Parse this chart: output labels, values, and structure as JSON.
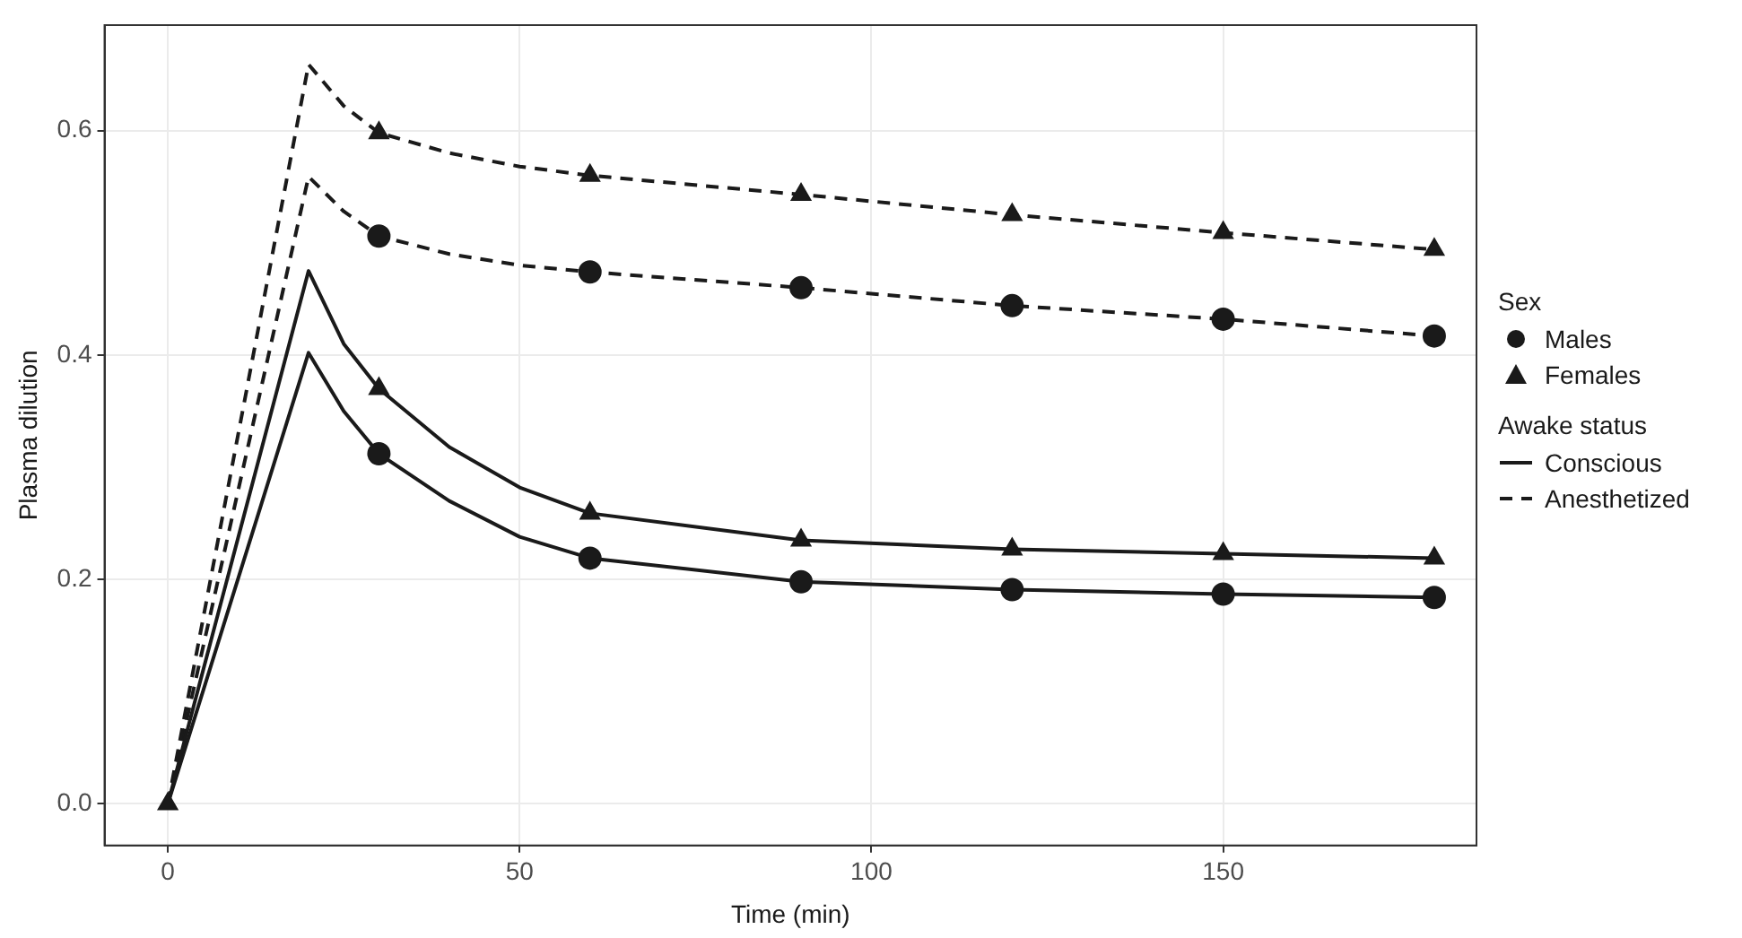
{
  "chart_data": {
    "type": "line",
    "xlabel": "Time (min)",
    "ylabel": "Plasma dilution",
    "legend_title": "Sex",
    "annotations": [
      "Awake status"
    ],
    "xlim": [
      -9,
      186
    ],
    "xticks": [
      0,
      50,
      100,
      150
    ],
    "ylim": [
      -0.037,
      0.694
    ],
    "yticks": [
      {
        "value": 0,
        "label": "0.0"
      },
      {
        "value": 0.2,
        "label": "0.2"
      },
      {
        "value": 0.4,
        "label": "0.4"
      },
      {
        "value": 0.6,
        "label": "0.6"
      }
    ],
    "grid": true,
    "legend": "right",
    "series": [
      {
        "name": "Conscious",
        "color": "#1a1a1a",
        "marker": "none",
        "line_style": "solid",
        "x": [
          0,
          20,
          25,
          30,
          40,
          50,
          60,
          90,
          120,
          150,
          180
        ],
        "values": [
          0,
          0.475,
          0.41,
          0.37,
          0.318,
          0.282,
          0.259,
          0.235,
          0.227,
          0.223,
          0.219
        ]
      },
      {
        "color": "#1a1a1a",
        "marker": "none",
        "line_style": "solid",
        "x": [
          0,
          20,
          25,
          30,
          40,
          50,
          60,
          90,
          120,
          150,
          180
        ],
        "values": [
          0,
          0.402,
          0.35,
          0.312,
          0.27,
          0.238,
          0.219,
          0.198,
          0.191,
          0.187,
          0.184
        ]
      },
      {
        "name": "Anesthetized",
        "color": "#1a1a1a",
        "marker": "none",
        "line_style": "dashed",
        "x": [
          0,
          20,
          25,
          30,
          40,
          50,
          60,
          90,
          120,
          150,
          180
        ],
        "values": [
          0,
          0.659,
          0.622,
          0.598,
          0.58,
          0.568,
          0.56,
          0.543,
          0.525,
          0.509,
          0.494
        ]
      },
      {
        "color": "#1a1a1a",
        "marker": "none",
        "line_style": "dashed",
        "x": [
          0,
          20,
          25,
          30,
          40,
          50,
          60,
          90,
          120,
          150,
          180
        ],
        "values": [
          0,
          0.559,
          0.528,
          0.506,
          0.49,
          0.48,
          0.474,
          0.46,
          0.444,
          0.432,
          0.417
        ]
      },
      {
        "type": "scatter",
        "name": "Males",
        "color": "#1a1a1a",
        "marker": "circle",
        "x": [
          30,
          60,
          90,
          120,
          150,
          180,
          30,
          60,
          90,
          120,
          150,
          180
        ],
        "values": [
          0.312,
          0.219,
          0.198,
          0.191,
          0.187,
          0.184,
          0.506,
          0.474,
          0.46,
          0.444,
          0.432,
          0.417
        ]
      },
      {
        "type": "scatter",
        "name": "Females",
        "color": "#1a1a1a",
        "marker": "triangle",
        "x": [
          0,
          30,
          60,
          90,
          120,
          150,
          180,
          30,
          60,
          90,
          120,
          150,
          180
        ],
        "values": [
          0,
          0.37,
          0.259,
          0.235,
          0.227,
          0.223,
          0.219,
          0.598,
          0.56,
          0.543,
          0.525,
          0.509,
          0.494
        ]
      }
    ]
  }
}
